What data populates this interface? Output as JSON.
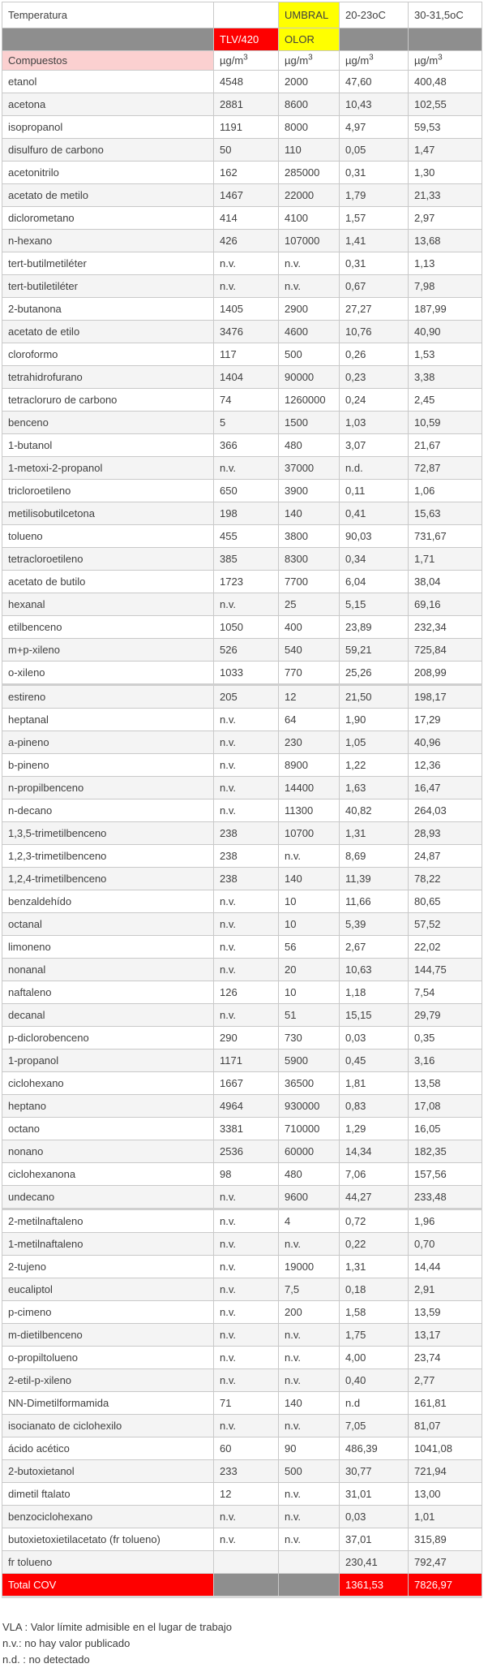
{
  "table": {
    "title_label": "Temperatura",
    "umbral_label": "UMBRAL",
    "temp_low_label": "20-23oC",
    "temp_high_label": "30-31,5oC",
    "tlv_label": "TLV/420",
    "olor_label": "OLOR",
    "compounds_label": "Compuestos",
    "unit_base": "µg/m",
    "unit_sup": "3",
    "rows": [
      [
        "etanol",
        "4548",
        "2000",
        "47,60",
        "400,48"
      ],
      [
        "acetona",
        "2881",
        "8600",
        "10,43",
        "102,55"
      ],
      [
        "isopropanol",
        "1191",
        "8000",
        "4,97",
        "59,53"
      ],
      [
        "disulfuro de carbono",
        "50",
        "110",
        "0,05",
        "1,47"
      ],
      [
        "acetonitrilo",
        "162",
        "285000",
        "0,31",
        "1,30"
      ],
      [
        "acetato de metilo",
        "1467",
        "22000",
        "1,79",
        "21,33"
      ],
      [
        "diclorometano",
        "414",
        "4100",
        "1,57",
        "2,97"
      ],
      [
        "n-hexano",
        "426",
        "107000",
        "1,41",
        "13,68"
      ],
      [
        "tert-butilmetiléter",
        "n.v.",
        "n.v.",
        "0,31",
        "1,13"
      ],
      [
        "tert-butiletiléter",
        "n.v.",
        "n.v.",
        "0,67",
        "7,98"
      ],
      [
        "2-butanona",
        "1405",
        "2900",
        "27,27",
        "187,99"
      ],
      [
        "acetato de etilo",
        "3476",
        "4600",
        "10,76",
        "40,90"
      ],
      [
        "cloroformo",
        "117",
        "500",
        "0,26",
        "1,53"
      ],
      [
        "tetrahidrofurano",
        "1404",
        "90000",
        "0,23",
        "3,38"
      ],
      [
        "tetracloruro de carbono",
        "74",
        "1260000",
        "0,24",
        "2,45"
      ],
      [
        "benceno",
        "5",
        "1500",
        "1,03",
        "10,59"
      ],
      [
        "1-butanol",
        "366",
        "480",
        "3,07",
        "21,67"
      ],
      [
        "1-metoxi-2-propanol",
        "n.v.",
        "37000",
        "n.d.",
        "72,87"
      ],
      [
        "tricloroetileno",
        "650",
        "3900",
        "0,11",
        "1,06"
      ],
      [
        "metilisobutilcetona",
        "198",
        "140",
        "0,41",
        "15,63"
      ],
      [
        "tolueno",
        "455",
        "3800",
        "90,03",
        "731,67"
      ],
      [
        "tetracloroetileno",
        "385",
        "8300",
        "0,34",
        "1,71"
      ],
      [
        "acetato de butilo",
        "1723",
        "7700",
        "6,04",
        "38,04"
      ],
      [
        "hexanal",
        "n.v.",
        "25",
        "5,15",
        "69,16"
      ],
      [
        "etilbenceno",
        "1050",
        "400",
        "23,89",
        "232,34"
      ],
      [
        "m+p-xileno",
        "526",
        "540",
        "59,21",
        "725,84"
      ],
      [
        "o-xileno",
        "1033",
        "770",
        "25,26",
        "208,99"
      ],
      [
        "estireno",
        "205",
        "12",
        "21,50",
        "198,17"
      ],
      [
        "heptanal",
        "n.v.",
        "64",
        "1,90",
        "17,29"
      ],
      [
        "a-pineno",
        "n.v.",
        "230",
        "1,05",
        "40,96"
      ],
      [
        "b-pineno",
        "n.v.",
        "8900",
        "1,22",
        "12,36"
      ],
      [
        "n-propilbenceno",
        "n.v.",
        "14400",
        "1,63",
        "16,47"
      ],
      [
        "n-decano",
        "n.v.",
        "11300",
        "40,82",
        "264,03"
      ],
      [
        "1,3,5-trimetilbenceno",
        "238",
        "10700",
        "1,31",
        "28,93"
      ],
      [
        "1,2,3-trimetilbenceno",
        "238",
        "n.v.",
        "8,69",
        "24,87"
      ],
      [
        "1,2,4-trimetilbenceno",
        "238",
        "140",
        "11,39",
        "78,22"
      ],
      [
        "benzaldehído",
        "n.v.",
        "10",
        "11,66",
        "80,65"
      ],
      [
        "octanal",
        "n.v.",
        "10",
        "5,39",
        "57,52"
      ],
      [
        "limoneno",
        "n.v.",
        "56",
        "2,67",
        "22,02"
      ],
      [
        "nonanal",
        "n.v.",
        "20",
        "10,63",
        "144,75"
      ],
      [
        "naftaleno",
        "126",
        "10",
        "1,18",
        "7,54"
      ],
      [
        "decanal",
        "n.v.",
        "51",
        "15,15",
        "29,79"
      ],
      [
        "p-diclorobenceno",
        "290",
        "730",
        "0,03",
        "0,35"
      ],
      [
        "1-propanol",
        "1171",
        "5900",
        "0,45",
        "3,16"
      ],
      [
        "ciclohexano",
        "1667",
        "36500",
        "1,81",
        "13,58"
      ],
      [
        "heptano",
        "4964",
        "930000",
        "0,83",
        "17,08"
      ],
      [
        "octano",
        "3381",
        "710000",
        "1,29",
        "16,05"
      ],
      [
        "nonano",
        "2536",
        "60000",
        "14,34",
        "182,35"
      ],
      [
        "ciclohexanona",
        "98",
        "480",
        "7,06",
        "157,56"
      ],
      [
        "undecano",
        "n.v.",
        "9600",
        "44,27",
        "233,48"
      ],
      [
        "2-metilnaftaleno",
        "n.v.",
        "4",
        "0,72",
        "1,96"
      ],
      [
        "1-metilnaftaleno",
        "n.v.",
        "n.v.",
        "0,22",
        "0,70"
      ],
      [
        "2-tujeno",
        "n.v.",
        "19000",
        "1,31",
        "14,44"
      ],
      [
        "eucaliptol",
        "n.v.",
        "7,5",
        "0,18",
        "2,91"
      ],
      [
        "p-cimeno",
        "n.v.",
        "200",
        "1,58",
        "13,59"
      ],
      [
        "m-dietilbenceno",
        "n.v.",
        "n.v.",
        "1,75",
        "13,17"
      ],
      [
        "o-propiltolueno",
        "n.v.",
        "n.v.",
        "4,00",
        "23,74"
      ],
      [
        "2-etil-p-xileno",
        "n.v.",
        "n.v.",
        "0,40",
        "2,77"
      ],
      [
        "NN-Dimetilformamida",
        "71",
        "140",
        "n.d",
        "161,81"
      ],
      [
        "isocianato de ciclohexilo",
        "n.v.",
        "n.v.",
        "7,05",
        "81,07"
      ],
      [
        "ácido acético",
        "60",
        "90",
        "486,39",
        "1041,08"
      ],
      [
        "2-butoxietanol",
        "233",
        "500",
        "30,77",
        "721,94"
      ],
      [
        "dimetil ftalato",
        "12",
        "n.v.",
        "31,01",
        "13,00"
      ],
      [
        "benzociclohexano",
        "n.v.",
        "n.v.",
        "0,03",
        "1,01"
      ],
      [
        "butoxietoxietilacetato (fr tolueno)",
        "n.v.",
        "n.v.",
        "37,01",
        "315,89"
      ],
      [
        "fr tolueno",
        "",
        "",
        "230,41",
        "792,47"
      ]
    ],
    "total": {
      "label": "Total COV",
      "c20": "1361,53",
      "c30": "7826,97"
    }
  },
  "footnotes": [
    "VLA : Valor límite admisible en el lugar de trabajo",
    "n.v.: no hay valor publicado",
    "n.d. : no detectado"
  ],
  "colors": {
    "accent_red": "#fe0000",
    "accent_yellow": "#ffff00",
    "header_gray": "#8e8e8e",
    "compounds_pink": "#fbd0d0",
    "stripe_gray": "#f4f4f4"
  }
}
